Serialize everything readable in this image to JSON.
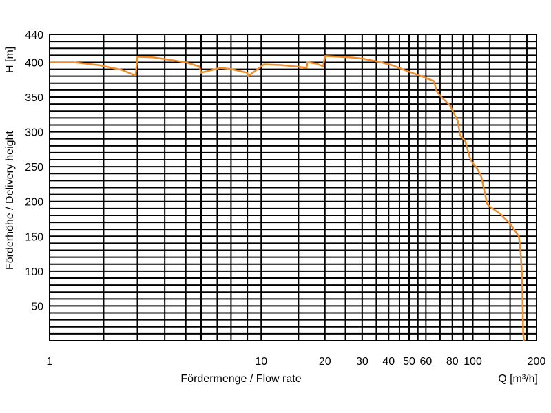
{
  "chart_data": {
    "type": "line",
    "xscale": "log",
    "xlim": [
      1,
      200
    ],
    "ylim": [
      0,
      440
    ],
    "xlabel": "Fördermenge / Flow rate",
    "xunit": "Q [m³/h]",
    "ylabel": "Förderhöhe / Delivery height",
    "yunit": "H [m]",
    "x_ticks": [
      1,
      10,
      20,
      30,
      40,
      50,
      60,
      80,
      100,
      200
    ],
    "x_tick_labels": [
      "1",
      "10",
      "20",
      "30",
      "40",
      "50",
      "60",
      "80",
      "100",
      "200"
    ],
    "y_ticks": [
      50,
      100,
      150,
      200,
      250,
      300,
      350,
      400,
      440
    ],
    "y_tick_labels": [
      "50",
      "100",
      "150",
      "200",
      "250",
      "300",
      "350",
      "400",
      "440"
    ],
    "x_gridlines": [
      1,
      1.8,
      2.6,
      3.5,
      4.4,
      5.2,
      6.2,
      7.2,
      8.6,
      10,
      15,
      20,
      25,
      30,
      35,
      40,
      45,
      50,
      55,
      60,
      70,
      80,
      90,
      100,
      120,
      150,
      180
    ],
    "y_gridline_step": 10,
    "grid": true,
    "color": "#f28c28",
    "series": [
      {
        "x": [
          1,
          1.3,
          1.7,
          2.2,
          2.55,
          2.6,
          3.1,
          3.8,
          4.4,
          5.1,
          5.2,
          6.4,
          7.3,
          8.6,
          8.65,
          10.3,
          12.3,
          14.5,
          16.4,
          16.5,
          18.3,
          19.6,
          20,
          23,
          26.5,
          30.5,
          35.5,
          41.4,
          46.6,
          52.5,
          58.3,
          65.5,
          67.5,
          71,
          78,
          85,
          87,
          92,
          96.5,
          99,
          105,
          109.5,
          117,
          120,
          135,
          150,
          165,
          168,
          171,
          172,
          173,
          174,
          175
        ],
        "y": [
          400,
          400,
          396,
          389,
          381,
          408,
          407,
          403,
          400,
          394,
          385,
          392,
          390,
          385,
          380,
          397,
          396,
          394,
          392,
          400,
          398,
          394,
          409,
          408,
          407,
          405,
          401,
          396,
          390,
          384,
          379,
          373,
          358,
          350,
          338,
          315,
          295,
          287,
          264,
          257,
          247,
          236,
          196,
          193,
          182,
          168,
          150,
          130,
          90,
          50,
          10,
          3,
          0
        ]
      }
    ]
  }
}
